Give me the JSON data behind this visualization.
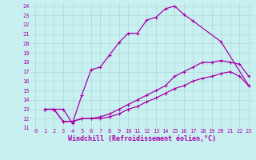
{
  "xlabel": "Windchill (Refroidissement éolien,°C)",
  "bg_color": "#c8f0f0",
  "grid_color": "#b0d8d8",
  "line_color": "#aa00aa",
  "xlim": [
    -0.5,
    23.5
  ],
  "ylim": [
    11,
    24.3
  ],
  "xticks": [
    0,
    1,
    2,
    3,
    4,
    5,
    6,
    7,
    8,
    9,
    10,
    11,
    12,
    13,
    14,
    15,
    16,
    17,
    18,
    19,
    20,
    21,
    22,
    23
  ],
  "yticks": [
    11,
    12,
    13,
    14,
    15,
    16,
    17,
    18,
    19,
    20,
    21,
    22,
    23,
    24
  ],
  "curve1_x": [
    1,
    2,
    3,
    4,
    5,
    6,
    7,
    8,
    9,
    10,
    11,
    12,
    13,
    14,
    15,
    16,
    17,
    20,
    23
  ],
  "curve1_y": [
    13,
    13,
    13,
    11.5,
    14.5,
    17.2,
    17.5,
    18.8,
    20.1,
    21.1,
    21.1,
    22.5,
    22.8,
    23.7,
    24.0,
    23.1,
    22.4,
    20.2,
    15.5
  ],
  "curve2_x": [
    1,
    2,
    3,
    4,
    5,
    6,
    7,
    8,
    9,
    10,
    11,
    12,
    13,
    14,
    15,
    16,
    17,
    18,
    19,
    20,
    21,
    22,
    23
  ],
  "curve2_y": [
    13,
    13,
    11.7,
    11.7,
    12.0,
    12.0,
    12.2,
    12.5,
    13.0,
    13.5,
    14.0,
    14.5,
    15.0,
    15.5,
    16.5,
    17.0,
    17.5,
    18.0,
    18.0,
    18.2,
    18.0,
    17.8,
    16.5
  ],
  "curve3_x": [
    1,
    2,
    3,
    4,
    5,
    6,
    7,
    8,
    9,
    10,
    11,
    12,
    13,
    14,
    15,
    16,
    17,
    18,
    19,
    20,
    21,
    22,
    23
  ],
  "curve3_y": [
    13,
    13,
    11.7,
    11.7,
    12.0,
    12.0,
    12.0,
    12.2,
    12.5,
    13.0,
    13.3,
    13.8,
    14.2,
    14.7,
    15.2,
    15.5,
    16.0,
    16.3,
    16.5,
    16.8,
    17.0,
    16.5,
    15.5
  ],
  "marker": "+",
  "marker_size": 3,
  "linewidth": 0.9,
  "tick_fontsize": 5,
  "label_fontsize": 6
}
